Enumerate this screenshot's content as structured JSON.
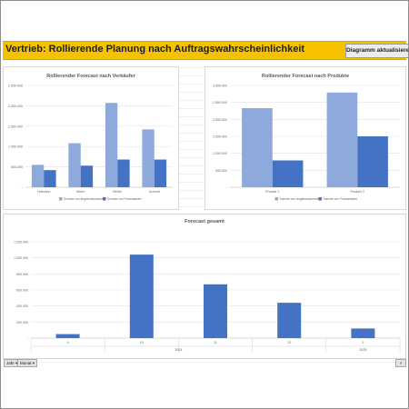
{
  "banner": {
    "title": "Vertrieb: Rollierende Planung nach Auftragswahrscheinlichkeit",
    "button_label": "Diagramm aktualisieren"
  },
  "pivot_fields": {
    "jahr": "Jahr",
    "monat": "Monat"
  },
  "colors": {
    "series_light": "#8ea9db",
    "series_dark": "#4472c4",
    "banner": "#f6c200"
  },
  "chart_data": [
    {
      "id": "chart1",
      "type": "bar",
      "title": "Rollierender Forecast nach Verkäufer",
      "categories": [
        "Hofmann",
        "Meier",
        "Müller",
        "Schmitt"
      ],
      "series": [
        {
          "name": "Summe von Angebotssumme",
          "values": [
            550000,
            1080000,
            2070000,
            1420000
          ]
        },
        {
          "name": "Summe von Forecastwert",
          "values": [
            420000,
            530000,
            680000,
            680000
          ]
        }
      ],
      "ylim": [
        0,
        2500000
      ],
      "yticks": [
        0,
        500000,
        1000000,
        1500000,
        2000000,
        2500000
      ],
      "ytick_labels": [
        "-",
        "500.000",
        "1.000.000",
        "1.500.000",
        "2.000.000",
        "2.500.000"
      ],
      "legend": "bottom"
    },
    {
      "id": "chart2",
      "type": "bar",
      "title": "Rollierender Forecast nach Produkte",
      "categories": [
        "Produkt 1",
        "Produkt 2"
      ],
      "series": [
        {
          "name": "Summe von Angebotssumme",
          "values": [
            2330000,
            2790000
          ]
        },
        {
          "name": "Summe von Forecastwert",
          "values": [
            790000,
            1500000
          ]
        }
      ],
      "ylim": [
        0,
        3000000
      ],
      "yticks": [
        0,
        500000,
        1000000,
        1500000,
        2000000,
        2500000,
        3000000
      ],
      "ytick_labels": [
        "-",
        "500.000",
        "1.000.000",
        "1.500.000",
        "2.000.000",
        "2.500.000",
        "3.000.000"
      ],
      "legend": "bottom"
    },
    {
      "id": "chart3",
      "type": "bar",
      "title": "Forecast gesamt",
      "categories": [
        "9",
        "10",
        "11",
        "12",
        "1"
      ],
      "groups": [
        {
          "label": "2024",
          "span": 4
        },
        {
          "label": "2025",
          "span": 1
        }
      ],
      "series": [
        {
          "values": [
            50000,
            1040000,
            670000,
            440000,
            120000
          ]
        }
      ],
      "ylim": [
        0,
        1200000
      ],
      "yticks": [
        0,
        200000,
        400000,
        600000,
        800000,
        1000000,
        1200000
      ],
      "ytick_labels": [
        "-",
        "200.000",
        "400.000",
        "600.000",
        "800.000",
        "1.000.000",
        "1.200.000"
      ]
    }
  ]
}
